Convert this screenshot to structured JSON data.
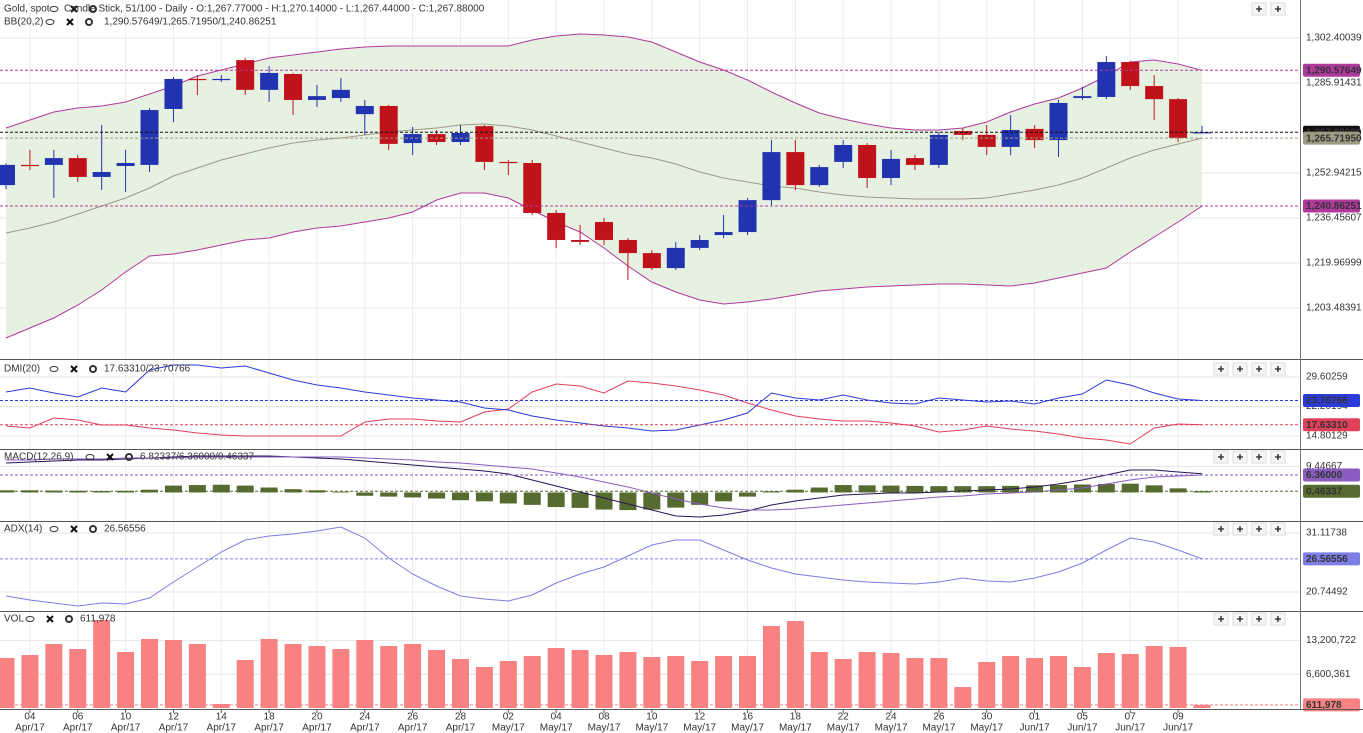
{
  "chart_data": [
    {
      "type": "candlestick",
      "title": "Gold, spot",
      "subtitle": "Candle Stick, 51/100 - Daily - O:1,267.77000 - H:1,270.14000 - L:1,267.44000 - C:1,267.88000",
      "overlay_title": "BB(20,2)",
      "overlay_legend": "1,290.57649/1,265.71950/1,240.86251",
      "categories": [
        null,
        [
          "04",
          "Apr/17"
        ],
        null,
        [
          "06",
          "Apr/17"
        ],
        null,
        [
          "10",
          "Apr/17"
        ],
        null,
        [
          "12",
          "Apr/17"
        ],
        null,
        [
          "14",
          "Apr/17"
        ],
        null,
        [
          "18",
          "Apr/17"
        ],
        null,
        [
          "20",
          "Apr/17"
        ],
        null,
        [
          "24",
          "Apr/17"
        ],
        null,
        [
          "26",
          "Apr/17"
        ],
        null,
        [
          "28",
          "Apr/17"
        ],
        null,
        [
          "02",
          "May/17"
        ],
        null,
        [
          "04",
          "May/17"
        ],
        null,
        [
          "08",
          "May/17"
        ],
        null,
        [
          "10",
          "May/17"
        ],
        null,
        [
          "12",
          "May/17"
        ],
        null,
        [
          "16",
          "May/17"
        ],
        null,
        [
          "18",
          "May/17"
        ],
        null,
        [
          "22",
          "May/17"
        ],
        null,
        [
          "24",
          "May/17"
        ],
        null,
        [
          "26",
          "May/17"
        ],
        null,
        [
          "30",
          "May/17"
        ],
        null,
        [
          "01",
          "Jun/17"
        ],
        null,
        [
          "05",
          "Jun/17"
        ],
        null,
        [
          "07",
          "Jun/17"
        ],
        null,
        [
          "09",
          "Jun/17"
        ],
        null
      ],
      "open": [
        1248.5,
        1255.9,
        1255.9,
        1258.4,
        1251.5,
        1255.5,
        1255.9,
        1276.4,
        1287.4,
        1287.0,
        1294.3,
        1283.4,
        1289.2,
        1279.7,
        1280.4,
        1274.5,
        1277.5,
        1263.9,
        1267.2,
        1264.3,
        1270.1,
        1257.0,
        1256.6,
        1238.3,
        1228.4,
        1235.0,
        1228.4,
        1223.6,
        1218.1,
        1225.5,
        1230.2,
        1231.3,
        1243.0,
        1260.6,
        1248.5,
        1257.0,
        1263.2,
        1251.1,
        1258.4,
        1255.9,
        1268.3,
        1266.9,
        1262.5,
        1269.1,
        1265.0,
        1280.4,
        1280.8,
        1293.6,
        1284.8,
        1280.0,
        1267.77
      ],
      "high": [
        1256.5,
        1261.4,
        1261.4,
        1259.5,
        1270.5,
        1261.4,
        1276.7,
        1288.1,
        1288.8,
        1288.8,
        1295.1,
        1292.1,
        1289.6,
        1285.2,
        1287.7,
        1279.7,
        1277.9,
        1269.8,
        1268.7,
        1270.5,
        1270.5,
        1257.7,
        1257.7,
        1239.4,
        1233.9,
        1236.5,
        1229.1,
        1224.7,
        1227.7,
        1230.2,
        1237.6,
        1243.8,
        1265.0,
        1265.0,
        1255.9,
        1265.0,
        1263.9,
        1261.4,
        1259.5,
        1268.0,
        1269.4,
        1270.5,
        1274.2,
        1270.5,
        1279.7,
        1284.5,
        1295.8,
        1294.0,
        1288.8,
        1280.4,
        1270.14
      ],
      "low": [
        1247.0,
        1254.0,
        1243.8,
        1249.7,
        1246.7,
        1246.0,
        1253.3,
        1271.6,
        1281.5,
        1286.3,
        1281.5,
        1279.0,
        1274.2,
        1277.1,
        1279.0,
        1266.9,
        1261.4,
        1259.5,
        1263.2,
        1263.2,
        1254.0,
        1252.2,
        1237.6,
        1225.5,
        1226.6,
        1226.6,
        1213.7,
        1217.4,
        1217.4,
        1224.7,
        1229.1,
        1230.2,
        1241.2,
        1246.7,
        1247.8,
        1254.8,
        1247.4,
        1248.5,
        1254.0,
        1254.8,
        1265.0,
        1259.5,
        1259.5,
        1262.1,
        1258.8,
        1279.7,
        1280.0,
        1283.4,
        1272.3,
        1264.3,
        1267.44
      ],
      "close": [
        1255.9,
        1255.6,
        1258.4,
        1251.5,
        1253.3,
        1256.6,
        1276.0,
        1287.4,
        1287.0,
        1287.4,
        1283.4,
        1289.6,
        1279.7,
        1281.1,
        1283.4,
        1277.5,
        1263.6,
        1267.2,
        1264.3,
        1267.6,
        1257.0,
        1256.6,
        1238.3,
        1228.4,
        1227.7,
        1228.4,
        1223.6,
        1218.1,
        1225.5,
        1228.4,
        1231.3,
        1243.0,
        1260.6,
        1248.5,
        1255.1,
        1263.2,
        1251.1,
        1258.1,
        1255.9,
        1266.9,
        1266.9,
        1262.5,
        1268.7,
        1265.0,
        1278.6,
        1281.1,
        1293.6,
        1284.8,
        1280.0,
        1265.8,
        1267.88
      ],
      "close_label": "1,267.88000",
      "close_color": "#111111",
      "up_color": "#2233b0",
      "down_color": "#c0121a",
      "band_fill": "#e3efdc",
      "series": [
        {
          "type": "line",
          "color": "#b03a9c",
          "label": "1,290.57649",
          "values": [
            1269.43,
            1272.36,
            1275.29,
            1276.75,
            1277.49,
            1278.95,
            1281.88,
            1284.81,
            1288.48,
            1290.67,
            1292.87,
            1295.07,
            1296.17,
            1297.27,
            1298.37,
            1299.1,
            1299.47,
            1299.47,
            1299.47,
            1299.47,
            1299.47,
            1299.47,
            1301.67,
            1303.13,
            1303.86,
            1303.5,
            1302.76,
            1300.93,
            1297.27,
            1293.61,
            1290.67,
            1287.01,
            1282.61,
            1278.59,
            1274.92,
            1272.72,
            1270.89,
            1269.43,
            1268.69,
            1268.69,
            1269.43,
            1271.62,
            1275.29,
            1278.22,
            1280.42,
            1284.08,
            1288.48,
            1293.61,
            1294.34,
            1292.87,
            1290.57649
          ]
        },
        {
          "type": "line",
          "color": "#9d9b84",
          "label": "1,265.71950",
          "values": [
            1230.96,
            1232.79,
            1234.99,
            1237.92,
            1240.85,
            1243.78,
            1247.45,
            1251.84,
            1254.77,
            1257.7,
            1259.9,
            1262.1,
            1263.93,
            1265.03,
            1265.76,
            1266.86,
            1267.96,
            1268.69,
            1269.43,
            1270.52,
            1270.89,
            1270.16,
            1268.69,
            1266.49,
            1264.3,
            1262.1,
            1259.9,
            1258.44,
            1256.24,
            1253.31,
            1251.11,
            1249.64,
            1248.18,
            1247.45,
            1245.98,
            1244.88,
            1244.15,
            1243.78,
            1243.41,
            1243.41,
            1243.41,
            1243.78,
            1245.25,
            1246.71,
            1248.54,
            1251.11,
            1254.77,
            1258.44,
            1261.37,
            1263.57,
            1265.7195
          ]
        },
        {
          "type": "line",
          "color": "#b03a9c",
          "label": "1,240.86251",
          "values": [
            1192.49,
            1196.15,
            1199.82,
            1204.56,
            1210.08,
            1216.67,
            1222.53,
            1223.26,
            1224.73,
            1226.56,
            1228.39,
            1229.13,
            1231.32,
            1232.79,
            1233.52,
            1234.99,
            1236.45,
            1238.65,
            1243.05,
            1245.61,
            1245.61,
            1243.78,
            1239.38,
            1234.99,
            1231.32,
            1225.46,
            1218.87,
            1213.01,
            1209.34,
            1206.41,
            1204.95,
            1205.68,
            1206.78,
            1208.24,
            1209.71,
            1210.44,
            1211.17,
            1211.54,
            1211.91,
            1212.27,
            1212.27,
            1211.91,
            1211.54,
            1212.64,
            1214.47,
            1216.3,
            1218.14,
            1224.0,
            1229.49,
            1234.99,
            1240.86251
          ]
        }
      ],
      "ylim": [
        1185.16,
        1316.32
      ],
      "yticks": [
        {
          "value": 1302.40039,
          "label": "1,302.40039"
        },
        {
          "value": 1285.91431,
          "label": "1,285.91431"
        },
        {
          "value": 1252.94215,
          "label": "1,252.94215"
        },
        {
          "value": 1236.45607,
          "label": "1,236.45607"
        },
        {
          "value": 1219.96999,
          "label": "1,219.96999"
        },
        {
          "value": 1203.48391,
          "label": "1,203.48391"
        }
      ],
      "grid": true
    },
    {
      "type": "line",
      "title": "DMI(20)",
      "legend": "17.63310/23.70766",
      "legend_color": "#d0304a",
      "series": [
        {
          "type": "line",
          "color": "#e0405a",
          "label": "17.63310",
          "values": [
            17.31,
            16.81,
            19.32,
            18.81,
            17.56,
            17.56,
            16.81,
            16.3,
            15.55,
            15.05,
            14.8,
            14.8,
            14.8,
            14.8,
            14.8,
            18.31,
            19.07,
            19.07,
            18.56,
            18.31,
            20.82,
            21.57,
            25.84,
            27.85,
            27.34,
            25.59,
            28.6,
            28.1,
            27.34,
            26.34,
            25.09,
            23.08,
            21.32,
            19.82,
            19.07,
            18.56,
            18.56,
            18.06,
            17.31,
            15.8,
            16.3,
            17.31,
            16.56,
            16.05,
            15.3,
            14.3,
            13.79,
            12.79,
            16.81,
            17.81,
            17.6331
          ]
        },
        {
          "type": "line",
          "color": "#2a3bd8",
          "label": "23.70766",
          "values": [
            25.84,
            26.84,
            25.59,
            24.58,
            26.84,
            25.84,
            31.36,
            32.61,
            32.61,
            31.86,
            32.36,
            30.61,
            28.85,
            27.6,
            26.84,
            25.84,
            25.09,
            24.33,
            23.83,
            23.33,
            21.83,
            21.32,
            19.82,
            18.81,
            18.06,
            17.31,
            16.81,
            16.05,
            16.3,
            17.56,
            18.81,
            20.57,
            25.59,
            24.33,
            23.83,
            25.09,
            23.83,
            23.08,
            22.83,
            24.33,
            23.83,
            23.33,
            23.58,
            22.83,
            24.33,
            25.34,
            28.85,
            27.6,
            25.59,
            24.08,
            23.70766
          ]
        }
      ],
      "ylim": [
        11.79,
        33.62
      ],
      "yticks": [
        29.60259,
        22.20194,
        14.80129
      ],
      "grid": true
    },
    {
      "type": "line",
      "title": "MACD(12,26,9)",
      "legend": "6.82337/6.36000/0.46337",
      "legend_color": "#5a3a90",
      "series": [
        {
          "type": "bar",
          "color": "#556b2f",
          "label": "0.46337",
          "values": [
            0.8,
            0.8,
            0.7,
            0.6,
            0.5,
            0.6,
            1.0,
            2.5,
            2.7,
            2.8,
            2.5,
            1.8,
            1.2,
            0.8,
            0.3,
            -1.2,
            -1.5,
            -1.8,
            -2.2,
            -2.8,
            -3.2,
            -4.0,
            -4.5,
            -5.3,
            -5.6,
            -6.2,
            -6.4,
            -6.2,
            -5.5,
            -4.5,
            -3.2,
            -1.5,
            0.4,
            1.0,
            1.8,
            2.7,
            2.6,
            2.5,
            2.4,
            2.3,
            2.3,
            2.3,
            2.4,
            2.6,
            2.7,
            2.9,
            3.1,
            3.2,
            2.6,
            1.5,
            0.46337
          ]
        },
        {
          "type": "line",
          "color": "#2c1456",
          "values": [
            10.72,
            11.09,
            11.45,
            11.81,
            11.81,
            12.18,
            12.54,
            12.91,
            13.27,
            13.27,
            13.27,
            13.27,
            12.91,
            12.54,
            12.18,
            11.45,
            10.72,
            9.99,
            9.27,
            8.55,
            7.81,
            6.72,
            4.54,
            2.36,
            0.18,
            -2.01,
            -4.19,
            -6.37,
            -8.55,
            -8.91,
            -8.19,
            -6.73,
            -4.55,
            -3.09,
            -2.0,
            -0.91,
            -0.55,
            -0.18,
            -0.18,
            0.18,
            0.54,
            0.91,
            1.27,
            2.0,
            3.09,
            4.54,
            6.36,
            8.18,
            8.18,
            7.45,
            6.82337
          ]
        },
        {
          "type": "line",
          "color": "#8a5cc0",
          "label": "6.36000",
          "values": [
            11.81,
            11.81,
            12.18,
            12.18,
            12.18,
            12.54,
            12.54,
            12.54,
            12.91,
            12.91,
            12.91,
            12.91,
            12.91,
            12.91,
            12.91,
            12.54,
            12.18,
            11.81,
            11.09,
            10.72,
            9.99,
            9.27,
            8.54,
            7.09,
            5.63,
            3.81,
            2.0,
            -0.18,
            -2.36,
            -4.18,
            -5.64,
            -6.37,
            -6.37,
            -6.0,
            -5.27,
            -4.55,
            -3.82,
            -3.09,
            -2.36,
            -1.64,
            -1.27,
            -0.55,
            -0.18,
            0.18,
            0.91,
            1.63,
            3.09,
            4.54,
            5.63,
            6.0,
            6.36
          ]
        }
      ],
      "ylim": [
        -10,
        15.8
      ],
      "yticks": [
        9.44667
      ],
      "grid": true
    },
    {
      "type": "line",
      "title": "ADX(14)",
      "legend": "26.56556",
      "legend_color": "#7070e0",
      "series": [
        {
          "type": "line",
          "color": "#7d7de6",
          "label": "26.56556",
          "values": [
            20.05,
            19.34,
            18.81,
            18.29,
            18.81,
            18.64,
            19.69,
            22.5,
            25.14,
            27.78,
            29.89,
            30.59,
            30.94,
            31.47,
            32.17,
            30.24,
            26.72,
            23.91,
            21.8,
            20.05,
            19.52,
            19.17,
            20.22,
            22.33,
            23.91,
            25.14,
            27.07,
            29.01,
            29.89,
            29.89,
            28.13,
            26.37,
            24.96,
            23.91,
            23.38,
            22.86,
            22.5,
            22.33,
            22.15,
            22.5,
            23.21,
            22.68,
            22.5,
            23.21,
            24.26,
            25.84,
            28.13,
            30.24,
            29.54,
            28.13,
            26.56556
          ]
        }
      ],
      "ylim": [
        17.58,
        33.23
      ],
      "yticks": [
        31.11738,
        20.74492
      ],
      "grid": true
    },
    {
      "type": "bar",
      "title": "VOL",
      "legend": "611,978",
      "legend_color": "#f07070",
      "series": [
        {
          "type": "bar",
          "color": "#f88282",
          "label": "611,978",
          "values": [
            9790000,
            10380000,
            12540000,
            11560000,
            17240000,
            10970000,
            13520000,
            13320000,
            12540000,
            780000,
            9400000,
            13520000,
            12540000,
            12140000,
            11560000,
            13320000,
            12140000,
            12540000,
            11360000,
            9600000,
            8030000,
            9210000,
            10190000,
            11750000,
            11360000,
            10380000,
            10970000,
            9990000,
            10190000,
            9210000,
            10190000,
            10190000,
            16060000,
            17040000,
            10970000,
            9600000,
            10970000,
            10770000,
            9790000,
            9790000,
            4110000,
            9010000,
            10190000,
            9790000,
            10190000,
            8030000,
            10770000,
            10580000,
            12140000,
            11950000,
            611978
          ]
        }
      ],
      "ylim": [
        0,
        19000000
      ],
      "yticks": [
        {
          "value": 13200722,
          "label": "13,200,722"
        },
        {
          "value": 6600361,
          "label": "6,600,361"
        }
      ],
      "grid": true
    }
  ]
}
